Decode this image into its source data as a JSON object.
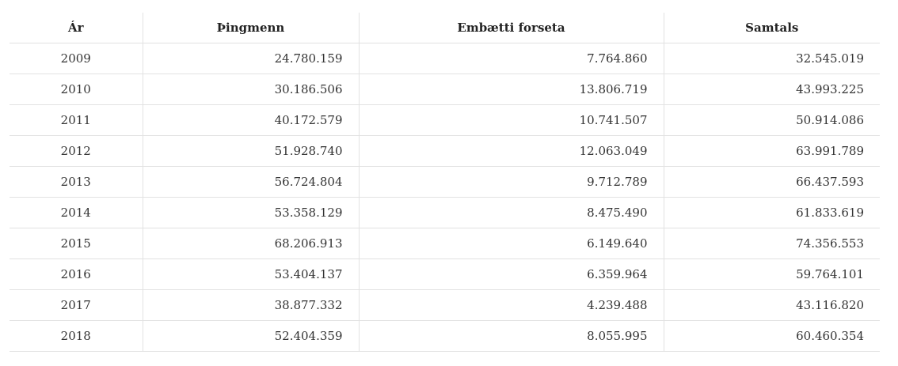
{
  "table": {
    "headers": {
      "year": "Ár",
      "mps": "Þingmenn",
      "president": "Embætti forseta",
      "total": "Samtals"
    },
    "rows": [
      {
        "year": "2009",
        "mps": "24.780.159",
        "president": "7.764.860",
        "total": "32.545.019"
      },
      {
        "year": "2010",
        "mps": "30.186.506",
        "president": "13.806.719",
        "total": "43.993.225"
      },
      {
        "year": "2011",
        "mps": "40.172.579",
        "president": "10.741.507",
        "total": "50.914.086"
      },
      {
        "year": "2012",
        "mps": "51.928.740",
        "president": "12.063.049",
        "total": "63.991.789"
      },
      {
        "year": "2013",
        "mps": "56.724.804",
        "president": "9.712.789",
        "total": "66.437.593"
      },
      {
        "year": "2014",
        "mps": "53.358.129",
        "president": "8.475.490",
        "total": "61.833.619"
      },
      {
        "year": "2015",
        "mps": "68.206.913",
        "president": "6.149.640",
        "total": "74.356.553"
      },
      {
        "year": "2016",
        "mps": "53.404.137",
        "president": "6.359.964",
        "total": "59.764.101"
      },
      {
        "year": "2017",
        "mps": "38.877.332",
        "president": "4.239.488",
        "total": "43.116.820"
      },
      {
        "year": "2018",
        "mps": "52.404.359",
        "president": "8.055.995",
        "total": "60.460.354"
      }
    ]
  }
}
